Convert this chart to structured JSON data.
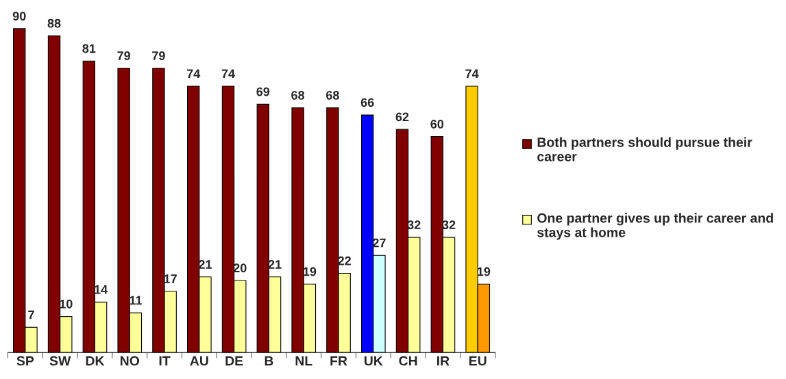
{
  "chart_data": {
    "type": "bar",
    "categories": [
      "SP",
      "SW",
      "DK",
      "NO",
      "IT",
      "AU",
      "DE",
      "B",
      "NL",
      "FR",
      "UK",
      "CH",
      "IR",
      "EU"
    ],
    "series": [
      {
        "name": "Both partners should pursue their career",
        "color": "#800000",
        "colors": [
          "#800000",
          "#800000",
          "#800000",
          "#800000",
          "#800000",
          "#800000",
          "#800000",
          "#800000",
          "#800000",
          "#800000",
          "#0000ff",
          "#800000",
          "#800000",
          "#ffcc00"
        ],
        "values": [
          90,
          88,
          81,
          79,
          79,
          74,
          74,
          69,
          68,
          68,
          66,
          62,
          60,
          74
        ]
      },
      {
        "name": "One partner gives up their career and stays at home",
        "color": "#ffff99",
        "colors": [
          "#ffff99",
          "#ffff99",
          "#ffff99",
          "#ffff99",
          "#ffff99",
          "#ffff99",
          "#ffff99",
          "#ffff99",
          "#ffff99",
          "#ffff99",
          "#ccffff",
          "#ffff99",
          "#ffff99",
          "#ff9900"
        ],
        "values": [
          7,
          10,
          14,
          11,
          17,
          21,
          20,
          21,
          19,
          22,
          27,
          32,
          32,
          19
        ]
      }
    ],
    "data_labels": true,
    "legend": "right",
    "tick_labels": "x",
    "grid": false
  }
}
